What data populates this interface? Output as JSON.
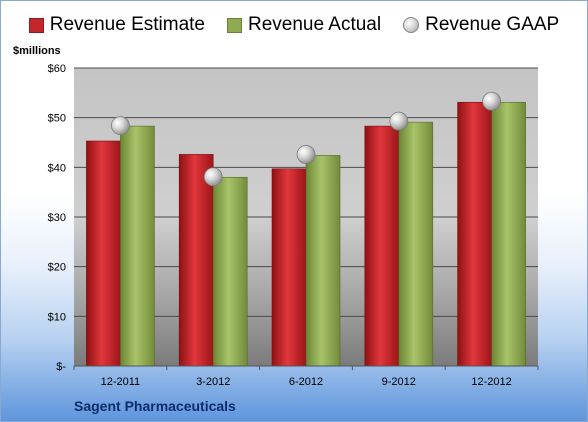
{
  "legend": {
    "estimate": "Revenue Estimate",
    "actual": "Revenue Actual",
    "gaap": "Revenue GAAP"
  },
  "units_label": "$millions",
  "company": "Sagent Pharmaceuticals",
  "colors": {
    "estimate": "#c0262b",
    "actual": "#8faa52",
    "gaap": "#c8c8c8"
  },
  "chart_data": {
    "type": "bar",
    "categories": [
      "12-2011",
      "3-2012",
      "6-2012",
      "9-2012",
      "12-2012"
    ],
    "series": [
      {
        "name": "Revenue Estimate",
        "values": [
          45.3,
          42.6,
          39.7,
          48.3,
          53.1
        ]
      },
      {
        "name": "Revenue Actual",
        "values": [
          48.3,
          38.0,
          42.4,
          49.1,
          53.1
        ]
      },
      {
        "name": "Revenue GAAP",
        "values": [
          48.4,
          38.1,
          42.6,
          49.3,
          53.3
        ],
        "marker": "circle"
      }
    ],
    "ylim": [
      0,
      60
    ],
    "yticks": [
      0,
      10,
      20,
      30,
      40,
      50,
      60
    ],
    "ytick_labels": [
      "$-",
      "$10",
      "$20",
      "$30",
      "$40",
      "$50",
      "$60"
    ],
    "ylabel": "$millions",
    "grid": true,
    "legend_position": "top"
  }
}
